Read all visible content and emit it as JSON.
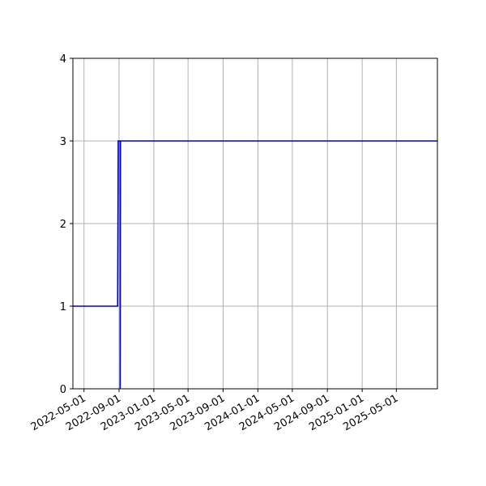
{
  "chart_data": {
    "type": "line",
    "title": "",
    "xlabel": "",
    "ylabel": "",
    "x_axis_type": "date",
    "xlim": [
      "2022-03-23",
      "2025-09-22"
    ],
    "ylim": [
      0,
      4
    ],
    "x_ticks": [
      "2022-05-01",
      "2022-09-01",
      "2023-01-01",
      "2023-05-01",
      "2023-09-01",
      "2024-01-01",
      "2024-05-01",
      "2024-09-01",
      "2025-01-01",
      "2025-05-01"
    ],
    "y_ticks": [
      0,
      1,
      2,
      3,
      4
    ],
    "x_tick_rotation_deg": 30,
    "grid": true,
    "legend": "none",
    "series": [
      {
        "color": "#0000cc",
        "points": [
          {
            "x": "2022-03-23",
            "y": 1
          },
          {
            "x": "2022-08-27",
            "y": 1
          },
          {
            "x": "2022-08-29",
            "y": 3
          },
          {
            "x": "2022-09-05",
            "y": 3
          },
          {
            "x": "2022-09-05",
            "y": 0
          },
          {
            "x": "2022-09-06",
            "y": 3
          },
          {
            "x": "2025-09-22",
            "y": 3
          }
        ]
      }
    ],
    "colors": {
      "line": "#0000cc",
      "grid": "#b0b0b0",
      "axes": "#000000"
    }
  }
}
